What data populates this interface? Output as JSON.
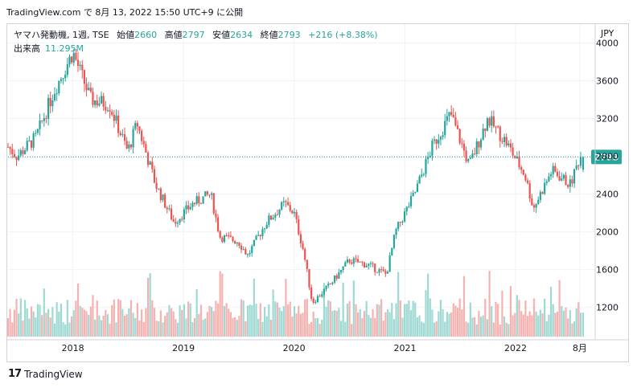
{
  "header": {
    "caption": "TradingView.com で 8月 13, 2022 15:50 UTC+9 に公開"
  },
  "legend": {
    "symbol": "ヤマハ発動機, 1週, TSE",
    "open_label": "始値",
    "open": "2660",
    "high_label": "高値",
    "high": "2797",
    "low_label": "安値",
    "low": "2634",
    "close_label": "終値",
    "close": "2793",
    "change": "+216 (+8.38%)",
    "volume_label": "出来高",
    "volume": "11.295M"
  },
  "axis": {
    "currency": "JPY",
    "price_ticks": [
      4000,
      3600,
      3200,
      2800,
      2400,
      2000,
      1600,
      1200
    ],
    "time_ticks": [
      "2018",
      "2019",
      "2020",
      "2021",
      "2022",
      "8月"
    ],
    "last_price_label": "2793"
  },
  "footer": {
    "logo_text": "TradingView",
    "logo_mark": "17"
  },
  "colors": {
    "up": "#26a69a",
    "down": "#ef5350",
    "up_volume": "#9fd9d3",
    "down_volume": "#f5b2b0",
    "last_price": "#26a69a"
  },
  "chart_data": {
    "type": "candlestick",
    "interval": "1W",
    "y_axis_ticks": [
      1200,
      1600,
      2000,
      2400,
      2800,
      3200,
      3600,
      4000
    ],
    "time_range": [
      "2017-06",
      "2022-08"
    ],
    "anchors": [
      {
        "date": "2017-06",
        "close": 2900
      },
      {
        "date": "2017-07",
        "close": 2800
      },
      {
        "date": "2017-09",
        "close": 3000
      },
      {
        "date": "2017-11",
        "close": 3500
      },
      {
        "date": "2018-01",
        "close": 3900
      },
      {
        "date": "2018-03",
        "close": 3400
      },
      {
        "date": "2018-05",
        "close": 3350
      },
      {
        "date": "2018-07",
        "close": 2850
      },
      {
        "date": "2018-08",
        "close": 3150
      },
      {
        "date": "2018-10",
        "close": 2500
      },
      {
        "date": "2018-12",
        "close": 2100
      },
      {
        "date": "2019-02",
        "close": 2300
      },
      {
        "date": "2019-04",
        "close": 2400
      },
      {
        "date": "2019-05",
        "close": 1950
      },
      {
        "date": "2019-07",
        "close": 1900
      },
      {
        "date": "2019-08",
        "close": 1750
      },
      {
        "date": "2019-10",
        "close": 2100
      },
      {
        "date": "2019-12",
        "close": 2300
      },
      {
        "date": "2020-01",
        "close": 2200
      },
      {
        "date": "2020-02",
        "close": 1800
      },
      {
        "date": "2020-03",
        "close": 1250
      },
      {
        "date": "2020-05",
        "close": 1450
      },
      {
        "date": "2020-07",
        "close": 1700
      },
      {
        "date": "2020-09",
        "close": 1650
      },
      {
        "date": "2020-11",
        "close": 1550
      },
      {
        "date": "2020-12",
        "close": 2000
      },
      {
        "date": "2021-02",
        "close": 2400
      },
      {
        "date": "2021-04",
        "close": 2900
      },
      {
        "date": "2021-06",
        "close": 3250
      },
      {
        "date": "2021-08",
        "close": 2700
      },
      {
        "date": "2021-10",
        "close": 3200
      },
      {
        "date": "2021-12",
        "close": 2950
      },
      {
        "date": "2022-02",
        "close": 2600
      },
      {
        "date": "2022-03",
        "close": 2250
      },
      {
        "date": "2022-05",
        "close": 2650
      },
      {
        "date": "2022-07",
        "close": 2500
      },
      {
        "date": "2022-08",
        "close": 2793
      }
    ],
    "last_bar": {
      "open": 2660,
      "high": 2797,
      "low": 2634,
      "close": 2793,
      "volume": "11.295M"
    },
    "last_price": 2793
  }
}
